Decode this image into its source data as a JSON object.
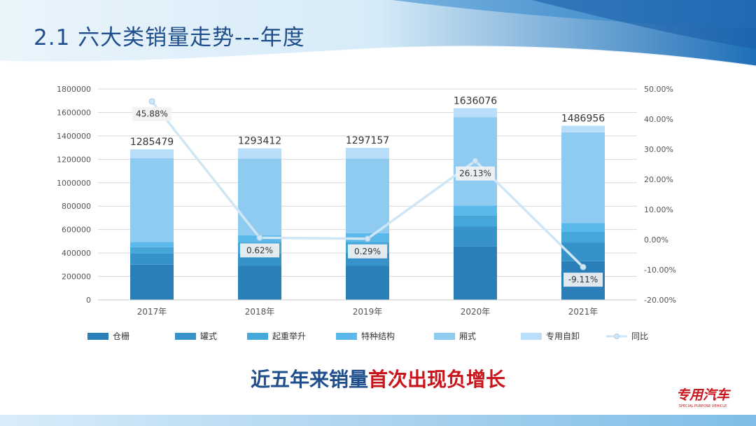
{
  "slide": {
    "title": "2.1 六大类销量走势---年度",
    "conclusion": {
      "part1": "近五年来销量",
      "part2": "首次出现",
      "part3": "负增长"
    },
    "logo_text": "专用汽车",
    "logo_subtext": "SPECIAL PURPOSE VEHICLE"
  },
  "chart_data": {
    "type": "bar",
    "stacked": true,
    "categories": [
      "2017年",
      "2018年",
      "2019年",
      "2020年",
      "2021年"
    ],
    "series": [
      {
        "name": "仓栅",
        "color": "#2b7fb8",
        "values": [
          300000,
          290000,
          290000,
          455000,
          330000
        ]
      },
      {
        "name": "罐式",
        "color": "#3792c9",
        "values": [
          95000,
          105000,
          110000,
          170000,
          160000
        ]
      },
      {
        "name": "起重举升",
        "color": "#45a6da",
        "values": [
          55000,
          100000,
          95000,
          95000,
          90000
        ]
      },
      {
        "name": "特种结构",
        "color": "#5bb8ea",
        "values": [
          45000,
          55000,
          75000,
          85000,
          75000
        ]
      },
      {
        "name": "厢式",
        "color": "#8fcbf1",
        "values": [
          715000,
          655000,
          635000,
          755000,
          775000
        ]
      },
      {
        "name": "专用自卸",
        "color": "#b9defa",
        "values": [
          75479,
          88412,
          92157,
          76076,
          56956
        ]
      }
    ],
    "totals": [
      1285479,
      1293412,
      1297157,
      1636076,
      1486956
    ],
    "total_labels": [
      "1285479",
      "1293412",
      "1297157",
      "1636076",
      "1486956"
    ],
    "line_series": {
      "name": "同比",
      "color": "#cfe6f5",
      "values": [
        45.88,
        0.62,
        0.29,
        26.13,
        -9.11
      ],
      "labels": [
        "45.88%",
        "0.62%",
        "0.29%",
        "26.13%",
        "-9.11%"
      ]
    },
    "y_left": {
      "min": 0,
      "max": 1800000,
      "step": 200000,
      "ticks": [
        "0",
        "200000",
        "400000",
        "600000",
        "800000",
        "1000000",
        "1200000",
        "1400000",
        "1600000",
        "1800000"
      ]
    },
    "y_right": {
      "min": -20,
      "max": 50,
      "step": 10,
      "ticks": [
        "-20.00%",
        "-10.00%",
        "0.00%",
        "10.00%",
        "20.00%",
        "30.00%",
        "40.00%",
        "50.00%"
      ]
    },
    "grid": true,
    "legend_position": "bottom"
  }
}
